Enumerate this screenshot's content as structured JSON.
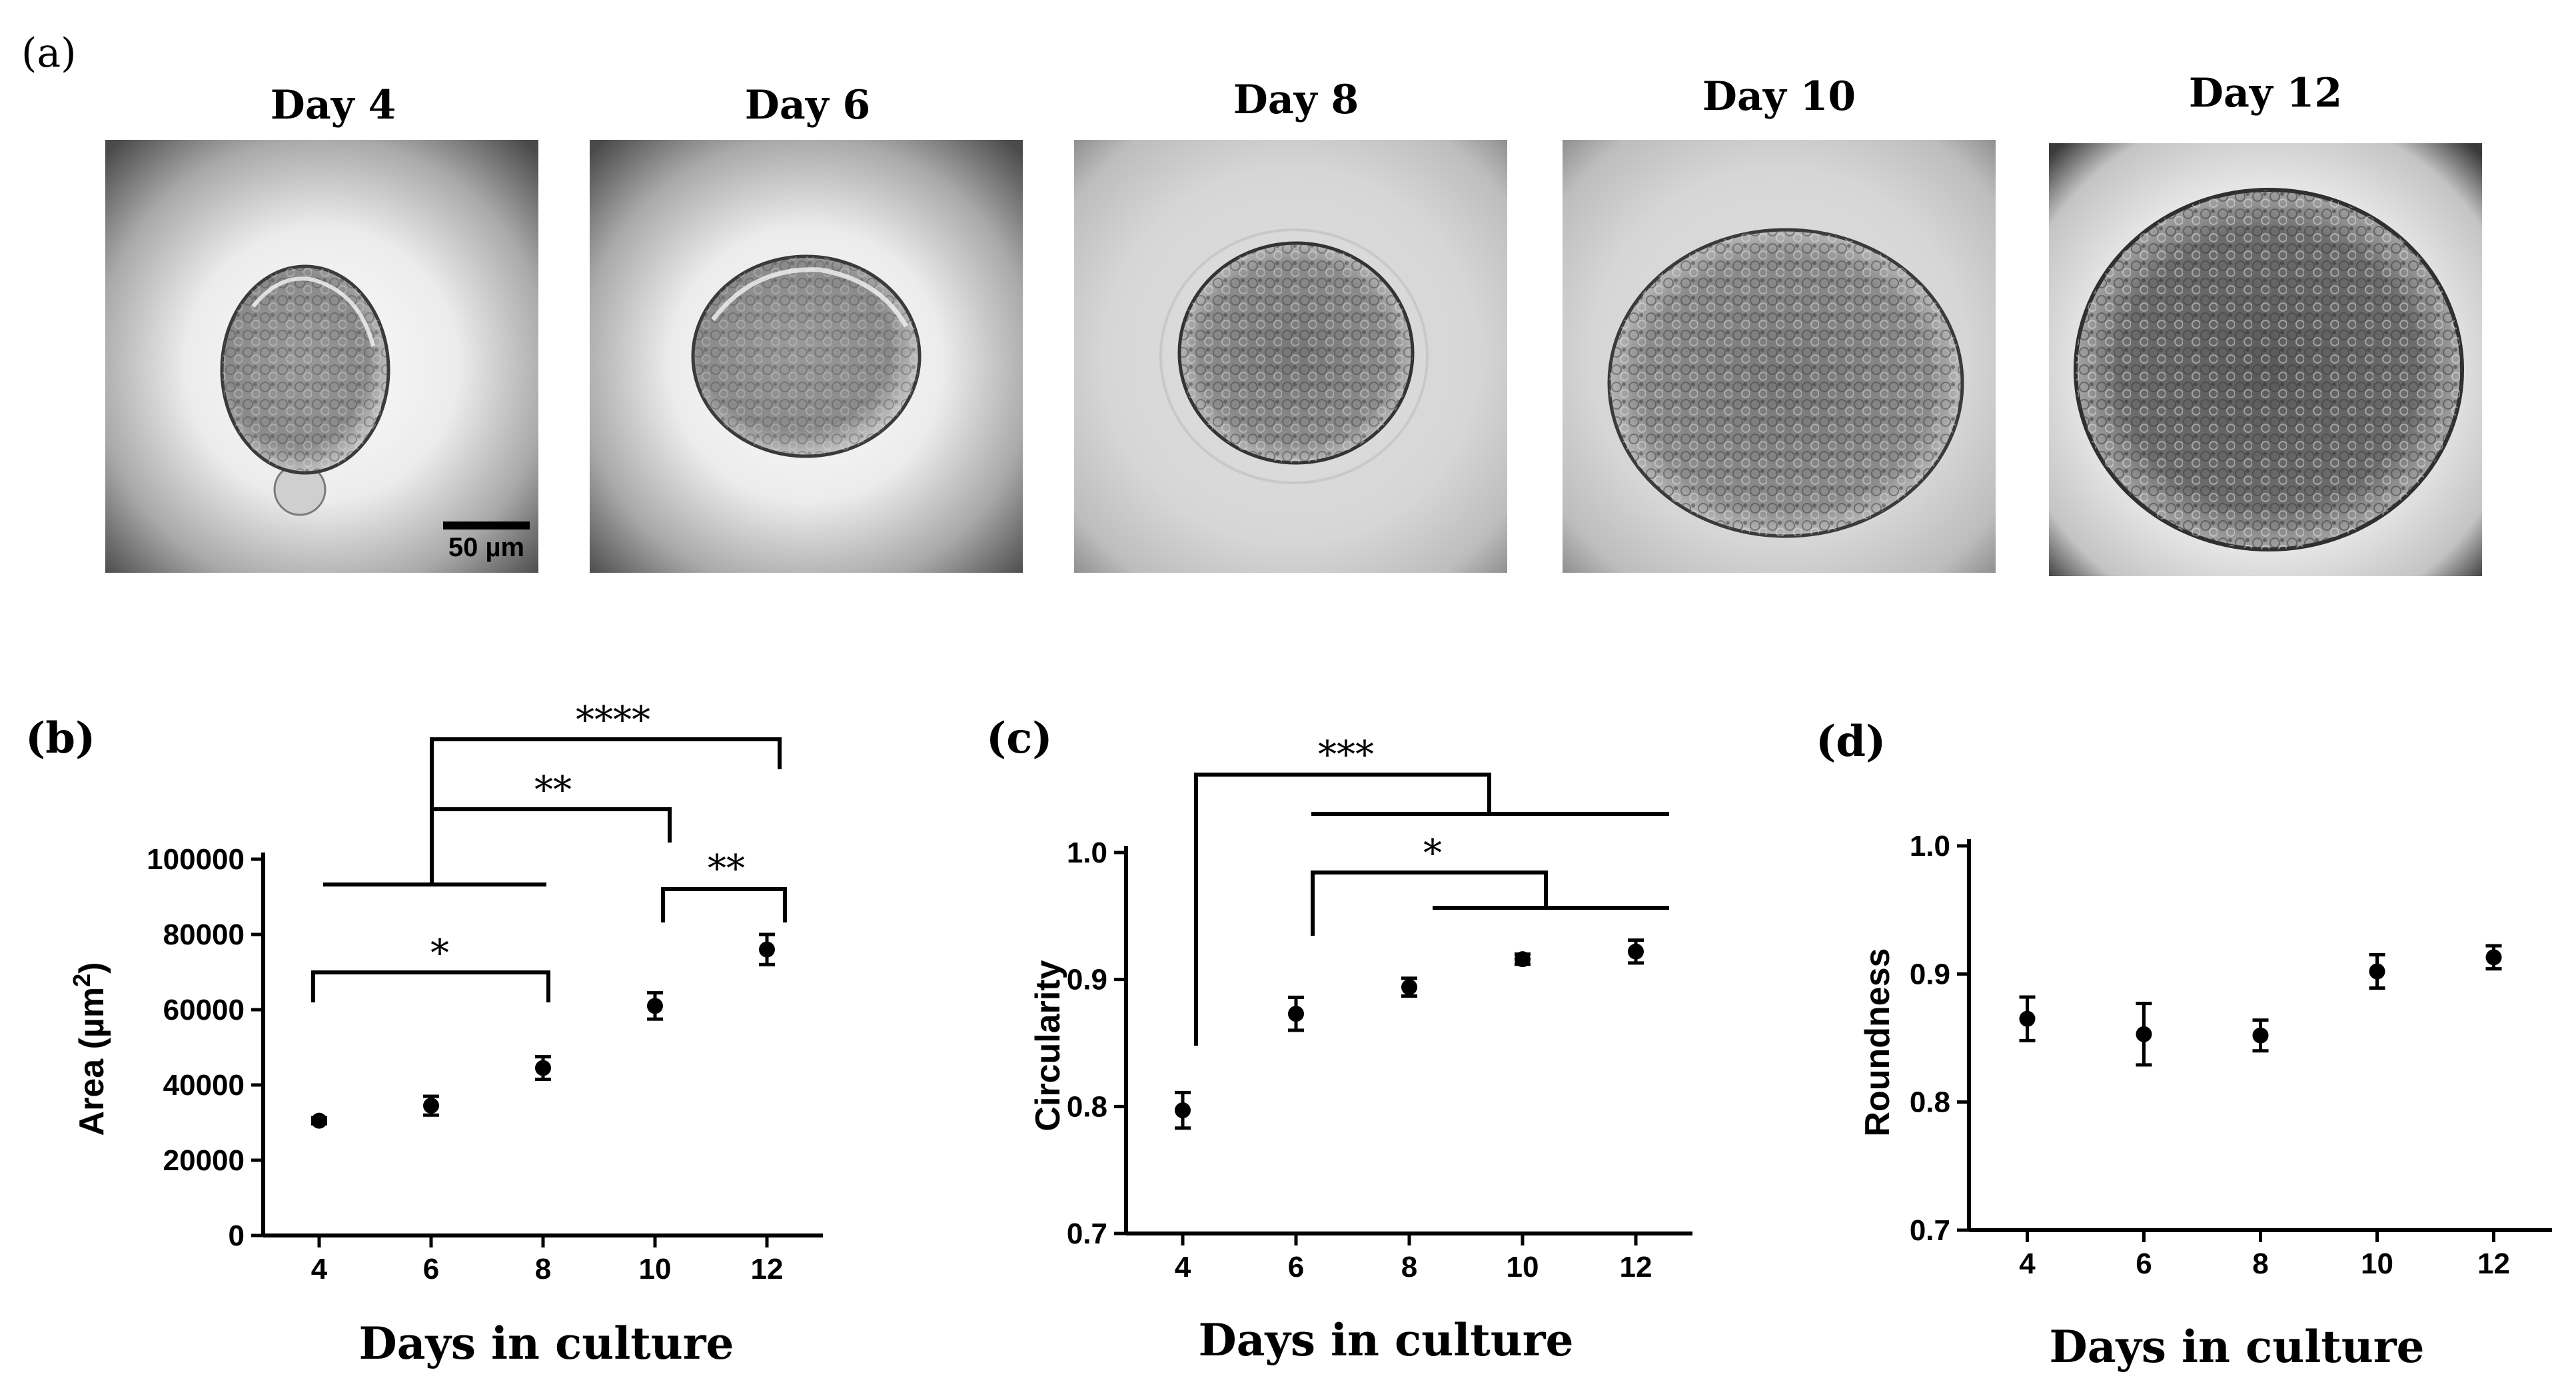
{
  "figure": {
    "panel_a": {
      "label": "(a)",
      "images": [
        {
          "title": "Day 4",
          "scale_bar": "50 µm"
        },
        {
          "title": "Day 6"
        },
        {
          "title": "Day 8"
        },
        {
          "title": "Day 10"
        },
        {
          "title": "Day 12"
        }
      ]
    }
  },
  "chart_data": [
    {
      "panel": "(b)",
      "type": "scatter",
      "xlabel": "Days in culture",
      "ylabel_main": "Area (µm",
      "ylabel_sup": "2",
      "ylabel_end": ")",
      "x": [
        4,
        6,
        8,
        10,
        12
      ],
      "y": [
        30500,
        34500,
        44500,
        61000,
        76000
      ],
      "err": [
        800,
        2500,
        3000,
        3500,
        4000
      ],
      "xticks": [
        4,
        6,
        8,
        10,
        12
      ],
      "yticks": [
        0,
        20000,
        40000,
        60000,
        80000,
        100000
      ],
      "ylim": [
        0,
        100000
      ],
      "xlim": [
        3,
        13
      ],
      "significance": [
        {
          "label": "****",
          "from": 6,
          "to": 12
        },
        {
          "label": "**",
          "from": 6,
          "to": 10
        },
        {
          "label": "**",
          "from": 10,
          "to": 12
        },
        {
          "label": "*",
          "from": 4,
          "to": 8
        }
      ]
    },
    {
      "panel": "(c)",
      "type": "scatter",
      "xlabel": "Days in culture",
      "ylabel": "Circularity",
      "x": [
        4,
        6,
        8,
        10,
        12
      ],
      "y": [
        0.797,
        0.873,
        0.894,
        0.916,
        0.922
      ],
      "err": [
        0.014,
        0.013,
        0.007,
        0.004,
        0.009
      ],
      "xticks": [
        4,
        6,
        8,
        10,
        12
      ],
      "yticks": [
        0.7,
        0.8,
        0.9,
        1.0
      ],
      "yticklabels": [
        "0.7",
        "0.8",
        "0.9",
        "1.0"
      ],
      "ylim": [
        0.7,
        1.0
      ],
      "xlim": [
        3,
        13
      ],
      "significance": [
        {
          "label": "***",
          "from": 4,
          "to": 12
        },
        {
          "label": "*",
          "from": 6,
          "to": 12
        }
      ]
    },
    {
      "panel": "(d)",
      "type": "scatter",
      "xlabel": "Days in culture",
      "ylabel": "Roundness",
      "x": [
        4,
        6,
        8,
        10,
        12
      ],
      "y": [
        0.865,
        0.853,
        0.852,
        0.902,
        0.913
      ],
      "err": [
        0.017,
        0.024,
        0.012,
        0.013,
        0.009
      ],
      "xticks": [
        4,
        6,
        8,
        10,
        12
      ],
      "yticks": [
        0.7,
        0.8,
        0.9,
        1.0
      ],
      "yticklabels": [
        "0.7",
        "0.8",
        "0.9",
        "1.0"
      ],
      "ylim": [
        0.7,
        1.0
      ],
      "xlim": [
        3,
        13
      ]
    }
  ]
}
